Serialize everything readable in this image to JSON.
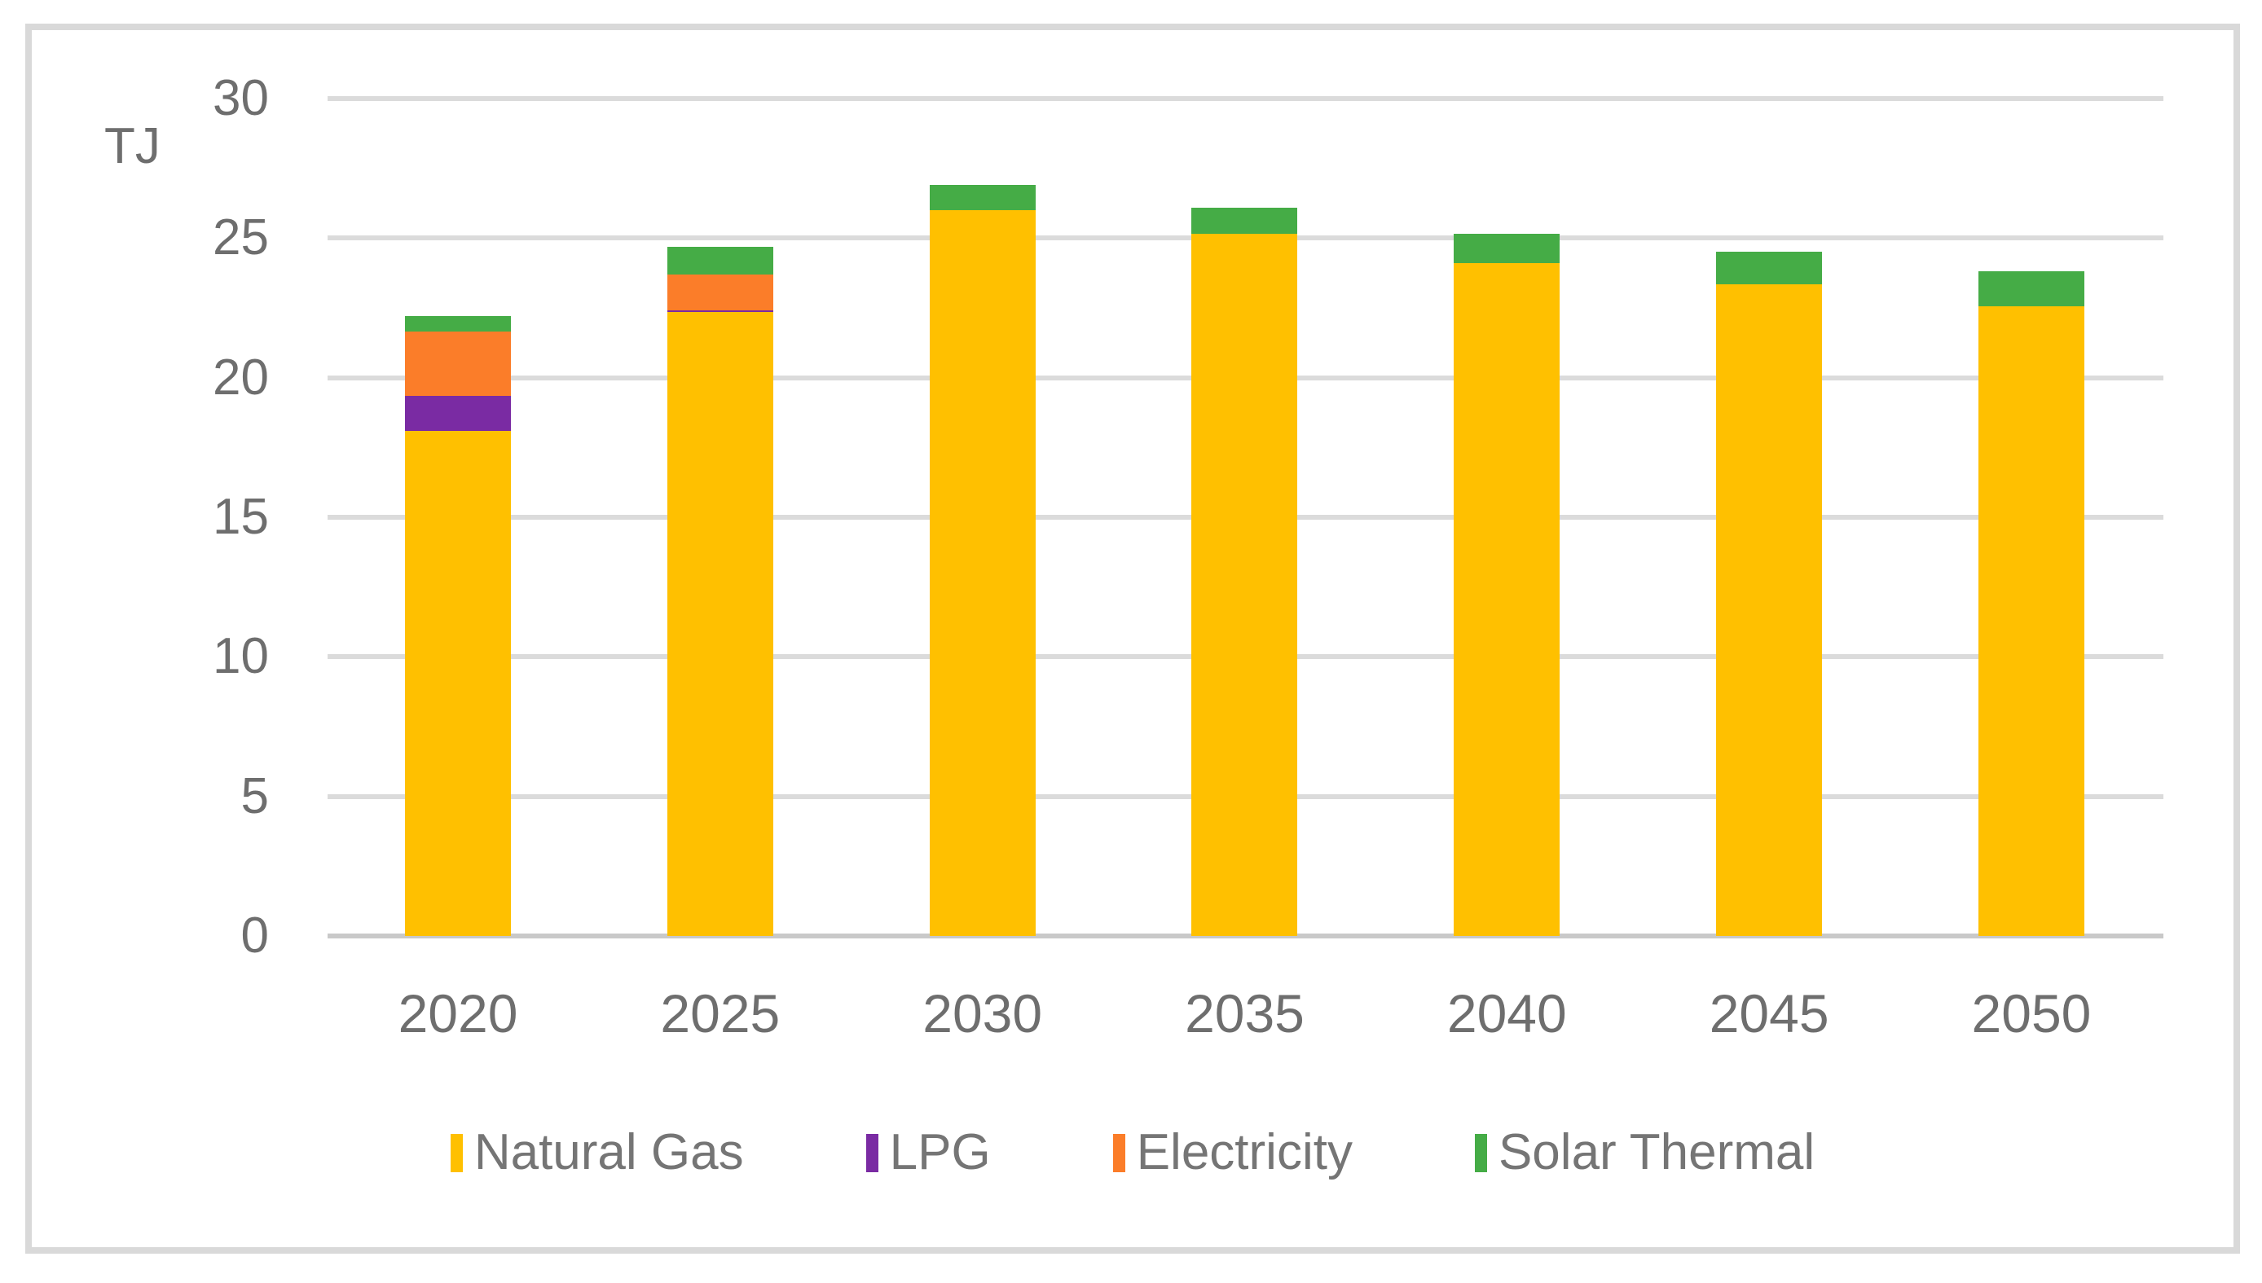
{
  "chart_data": {
    "type": "bar",
    "stacked": true,
    "ylabel": "TJ",
    "categories": [
      "2020",
      "2025",
      "2030",
      "2035",
      "2040",
      "2045",
      "2050"
    ],
    "series": [
      {
        "name": "Natural Gas",
        "color": "#FFC000",
        "values": [
          18.1,
          22.35,
          26.0,
          25.15,
          24.1,
          23.35,
          22.55
        ]
      },
      {
        "name": "LPG",
        "color": "#7A2BA3",
        "values": [
          1.25,
          0.05,
          0,
          0,
          0,
          0,
          0
        ]
      },
      {
        "name": "Electricity",
        "color": "#FB7D29",
        "values": [
          2.3,
          1.3,
          0,
          0,
          0,
          0,
          0
        ]
      },
      {
        "name": "Solar Thermal",
        "color": "#45AC46",
        "values": [
          0.55,
          1.0,
          0.9,
          0.95,
          1.05,
          1.15,
          1.25
        ]
      }
    ],
    "totals": [
      22.2,
      24.7,
      26.9,
      26.1,
      25.2,
      24.5,
      23.8
    ],
    "ylim": [
      0,
      30
    ],
    "yticks": [
      0,
      5,
      10,
      15,
      20,
      25,
      30
    ],
    "grid": true,
    "legend_position": "bottom",
    "gridline_color": "#DBDBDB",
    "axis_line_color": "#C9C9C9",
    "label_color": "#6E6E6E",
    "frame_color": "#D9D9D9"
  }
}
